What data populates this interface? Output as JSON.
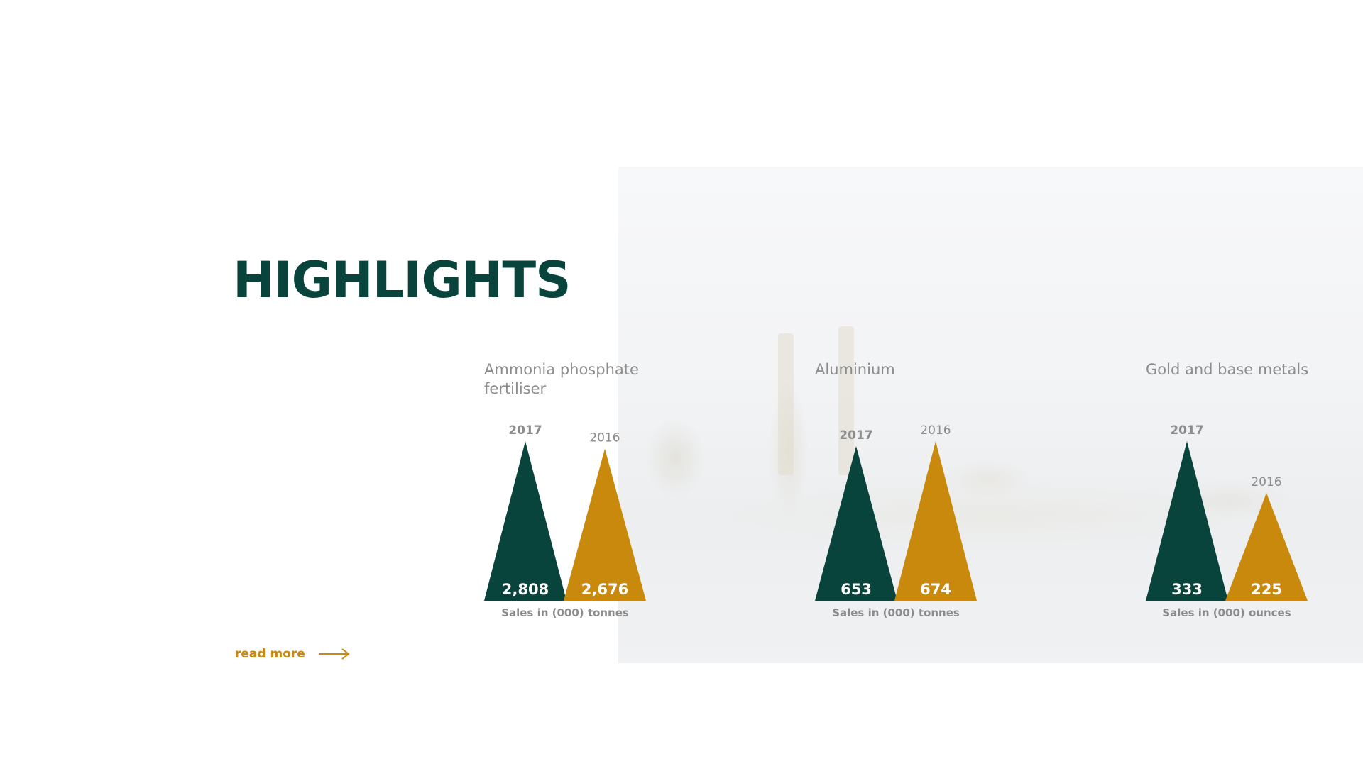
{
  "page": {
    "title": "HIGHLIGHTS"
  },
  "read_more": {
    "label": "read more"
  },
  "colors": {
    "primary": "#08443b",
    "accent": "#c9890c",
    "muted": "#8c8c8c",
    "value_text": "#ffffff"
  },
  "chart_data": [
    {
      "type": "bar",
      "title": "Ammonia phosphate fertiliser",
      "categories": [
        "2017",
        "2016"
      ],
      "values": [
        2808,
        2676
      ],
      "value_labels": [
        "2,808",
        "2,676"
      ],
      "caption": "Sales in (000) tonnes"
    },
    {
      "type": "bar",
      "title": "Aluminium",
      "categories": [
        "2017",
        "2016"
      ],
      "values": [
        653,
        674
      ],
      "value_labels": [
        "653",
        "674"
      ],
      "caption": "Sales in (000) tonnes"
    },
    {
      "type": "bar",
      "title": "Gold and base metals",
      "categories": [
        "2017",
        "2016"
      ],
      "values": [
        333,
        225
      ],
      "value_labels": [
        "333",
        "225"
      ],
      "caption": "Sales in (000) ounces"
    }
  ]
}
